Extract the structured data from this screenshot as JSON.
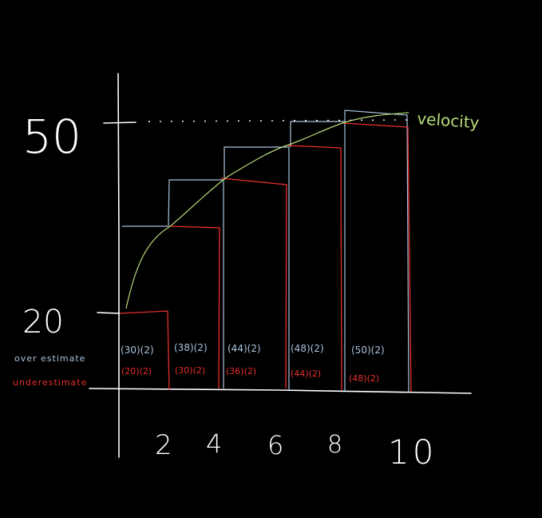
{
  "y_axis_labels": {
    "top": "50",
    "bottom": "20"
  },
  "x_axis_labels": [
    "2",
    "4",
    "6",
    "8",
    "10"
  ],
  "curve_label": "velocity",
  "legend": {
    "over": "over estimate",
    "under": "underestimate"
  },
  "over_estimates": [
    "(30)(2)",
    "(38)(2)",
    "(44)(2)",
    "(48)(2)",
    "(50)(2)"
  ],
  "under_estimates": [
    "(20)(2)",
    "(30)(2)",
    "(36)(2)",
    "(44)(2)",
    "(48)(2)"
  ],
  "colors": {
    "background": "#000000",
    "axes": "#ffffff",
    "over": "#a9c4dd",
    "under": "#e8302c",
    "curve": "#b8dc78"
  }
}
